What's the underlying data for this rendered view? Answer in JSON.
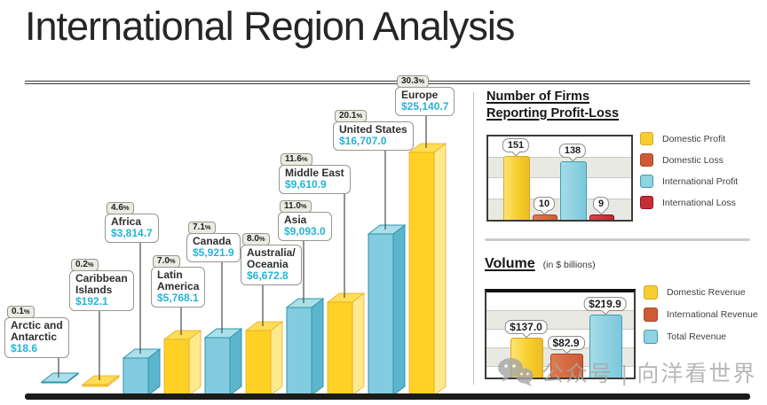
{
  "title": "International Region Analysis",
  "watermark": {
    "icon": "wechat-icon",
    "text": "公众号 | 向洋看世界"
  },
  "colors": {
    "value_accent": "#25b4d5",
    "bar_blue_front": "#83cbde",
    "bar_blue_side": "#5bb5cb",
    "bar_blue_top": "#abdfea",
    "bar_blue_stroke": "#2e95ad",
    "bar_yellow_front": "#ffd126",
    "bar_yellow_side": "#ffe98f",
    "bar_yellow_top": "#ffdd55",
    "bar_yellow_stroke": "#e2a91c",
    "domestic_profit": "#f7ce2e",
    "domestic_loss": "#ce5b35",
    "international_profit": "#8fd2e0",
    "international_loss": "#c72f37"
  },
  "firms_panel": {
    "title_line1": "Number of Firms",
    "title_line2": "Reporting Profit-Loss"
  },
  "volume_panel": {
    "title": "Volume",
    "subtitle": "(in $ billions)"
  },
  "chart_data": [
    {
      "type": "bar",
      "title": "International Region Analysis",
      "categories": [
        "Arctic and Antarctic",
        "Caribbean Islands",
        "Africa",
        "Latin America",
        "Canada",
        "Australia/Oceania",
        "Asia",
        "Middle East",
        "United States",
        "Europe"
      ],
      "name_lines": [
        "Arctic and\nAntarctic",
        "Caribbean\nIslands",
        "Africa",
        "Latin\nAmerica",
        "Canada",
        "Australia/\nOceania",
        "Asia",
        "Middle East",
        "United States",
        "Europe"
      ],
      "values": [
        18.6,
        192.1,
        3814.7,
        5768.1,
        5921.9,
        6672.8,
        9093.0,
        9610.9,
        16707.0,
        25140.7
      ],
      "value_labels": [
        "$18.6",
        "$192.1",
        "$3,814.7",
        "$5,768.1",
        "$5,921.9",
        "$6,672.8",
        "$9,093.0",
        "$9,610.9",
        "$16,707.0",
        "$25,140.7"
      ],
      "percentages": [
        0.1,
        0.2,
        4.6,
        7.0,
        7.1,
        8.0,
        11.0,
        11.6,
        20.1,
        30.3
      ],
      "pct_labels": [
        "0.1%",
        "0.2%",
        "4.6%",
        "7.0%",
        "7.1%",
        "8.0%",
        "11.0%",
        "11.6%",
        "20.1%",
        "30.3%"
      ],
      "bar_palette": [
        "blue",
        "yellow",
        "blue",
        "yellow",
        "blue",
        "yellow",
        "blue",
        "yellow",
        "blue",
        "yellow"
      ],
      "ylim": [
        0,
        25140.7
      ],
      "grid": false,
      "legend_position": "none",
      "style": "3d-boxes"
    },
    {
      "type": "bar",
      "title": "Number of Firms Reporting Profit-Loss",
      "categories": [
        "Domestic Profit",
        "Domestic Loss",
        "International Profit",
        "International Loss"
      ],
      "values": [
        151,
        10,
        138,
        9
      ],
      "value_labels": [
        "151",
        "10",
        "138",
        "9"
      ],
      "color_keys": [
        "yellow",
        "orange",
        "blue",
        "red"
      ],
      "ylim": [
        0,
        160
      ],
      "grid": true,
      "legend_position": "right",
      "legend": [
        {
          "label": "Domestic Profit",
          "color_key": "yellow"
        },
        {
          "label": "Domestic Loss",
          "color_key": "orange"
        },
        {
          "label": "International Profit",
          "color_key": "blue"
        },
        {
          "label": "International Loss",
          "color_key": "red"
        }
      ]
    },
    {
      "type": "bar",
      "title": "Volume",
      "subtitle": "(in $ billions)",
      "categories": [
        "Domestic Revenue",
        "International Revenue",
        "Total Revenue"
      ],
      "values": [
        137.0,
        82.9,
        219.9
      ],
      "value_labels": [
        "$137.0",
        "$82.9",
        "$219.9"
      ],
      "color_keys": [
        "yellow",
        "orange",
        "blue"
      ],
      "ylim": [
        0,
        230
      ],
      "grid": true,
      "legend_position": "right",
      "legend": [
        {
          "label": "Domestic Revenue",
          "color_key": "yellow"
        },
        {
          "label": "International Revenue",
          "color_key": "orange"
        },
        {
          "label": "Total Revenue",
          "color_key": "blue"
        }
      ]
    }
  ]
}
